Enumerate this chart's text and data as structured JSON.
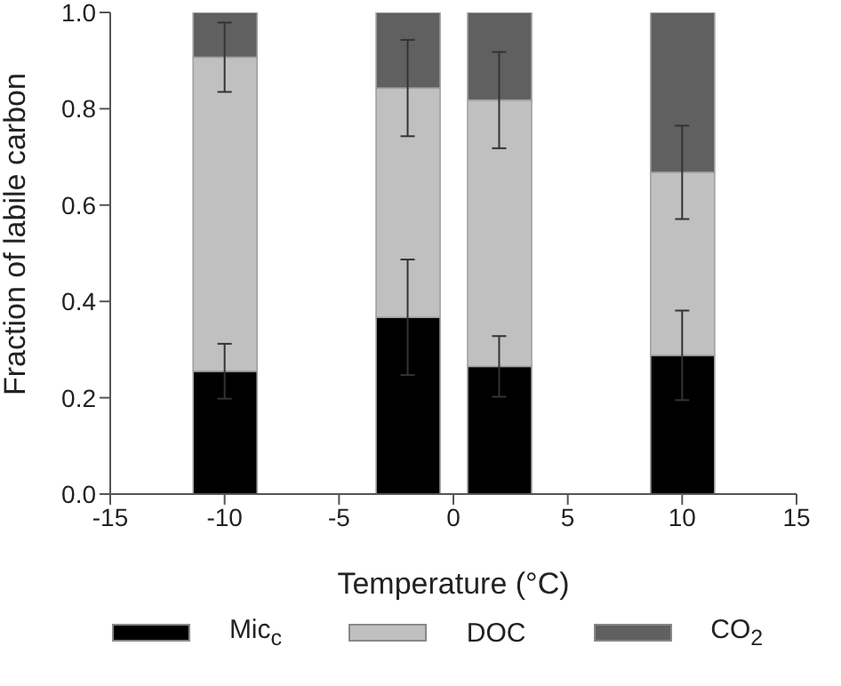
{
  "chart_data": {
    "type": "bar",
    "stacked": true,
    "xlabel": "Temperature (°C)",
    "ylabel": "Fraction of labile carbon",
    "x": [
      -10,
      -2,
      2,
      10
    ],
    "series": [
      {
        "name": "Mic$_{c}$",
        "color": "#000000",
        "values": [
          0.255,
          0.367,
          0.265,
          0.288
        ],
        "errors": [
          0.057,
          0.12,
          0.063,
          0.093
        ]
      },
      {
        "name": "DOC",
        "color": "#c0c0c0",
        "values": [
          0.652,
          0.476,
          0.553,
          0.38
        ],
        "errors": [
          0.072,
          0.1,
          0.1,
          0.097
        ]
      },
      {
        "name": "CO$_{2}$",
        "color": "#606060",
        "values": [
          0.093,
          0.157,
          0.182,
          0.332
        ]
      }
    ],
    "xlim": [
      -15,
      15
    ],
    "xticks": [
      -15,
      -10,
      -5,
      0,
      5,
      10,
      15
    ],
    "ylim": [
      0,
      1
    ],
    "yticks": [
      {
        "value": 0,
        "label": "0.0"
      },
      {
        "value": 0.2,
        "label": "0.2"
      },
      {
        "value": 0.4,
        "label": "0.4"
      },
      {
        "value": 0.6,
        "label": "0.6"
      },
      {
        "value": 0.8,
        "label": "0.8"
      },
      {
        "value": 1,
        "label": "1.0"
      }
    ],
    "legend": "bottom",
    "grid": false
  }
}
